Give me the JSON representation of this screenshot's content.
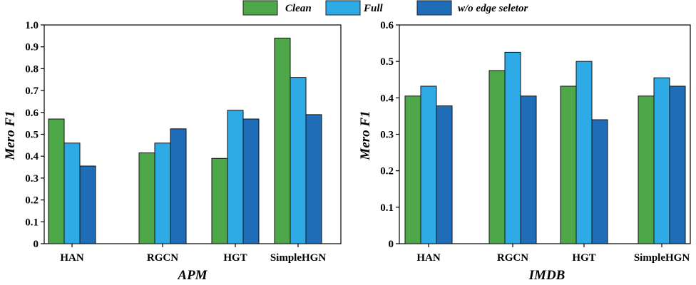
{
  "legend": [
    {
      "name": "Clean",
      "color": "#4ea84a"
    },
    {
      "name": "Full",
      "color": "#2eaae6"
    },
    {
      "name": "w/o edge seletor",
      "color": "#1f6cb8"
    }
  ],
  "chart_data": [
    {
      "type": "bar",
      "title": "",
      "xlabel": "APM",
      "ylabel": "Mero F1",
      "ylim": [
        0,
        1.0
      ],
      "yticks": [
        "0",
        "0.1",
        "0.2",
        "0.3",
        "0.4",
        "0.5",
        "0.6",
        "0.7",
        "0.8",
        "0.9",
        "1.0"
      ],
      "categories": [
        "HAN",
        "RGCN",
        "HGT",
        "SimpleHGN"
      ],
      "series": [
        {
          "name": "Clean",
          "values": [
            0.57,
            0.415,
            0.39,
            0.94
          ]
        },
        {
          "name": "Full",
          "values": [
            0.46,
            0.46,
            0.61,
            0.76
          ]
        },
        {
          "name": "w/o edge seletor",
          "values": [
            0.355,
            0.525,
            0.57,
            0.59
          ]
        }
      ]
    },
    {
      "type": "bar",
      "title": "",
      "xlabel": "IMDB",
      "ylabel": "Mero F1",
      "ylim": [
        0,
        0.6
      ],
      "yticks": [
        "0",
        "0.1",
        "0.2",
        "0.3",
        "0.4",
        "0.5",
        "0.6"
      ],
      "categories": [
        "HAN",
        "RGCN",
        "HGT",
        "SimpleHGN"
      ],
      "series": [
        {
          "name": "Clean",
          "values": [
            0.405,
            0.475,
            0.432,
            0.405
          ]
        },
        {
          "name": "Full",
          "values": [
            0.432,
            0.525,
            0.5,
            0.455
          ]
        },
        {
          "name": "w/o edge seletor",
          "values": [
            0.378,
            0.405,
            0.34,
            0.432
          ]
        }
      ]
    }
  ]
}
